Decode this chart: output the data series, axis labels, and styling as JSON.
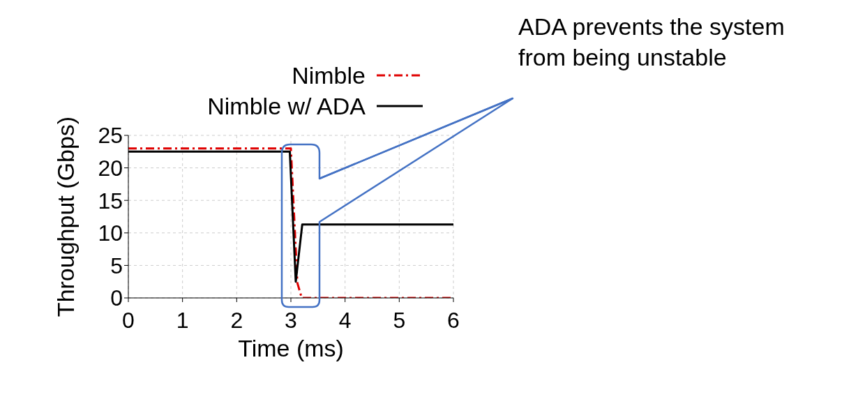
{
  "chart_data": {
    "type": "line",
    "xlabel": "Time (ms)",
    "ylabel": "Throughput (Gbps)",
    "xlim": [
      0,
      6
    ],
    "xticks": [
      0,
      1,
      2,
      3,
      4,
      5,
      6
    ],
    "ylim": [
      0,
      25
    ],
    "yticks": [
      0,
      5,
      10,
      15,
      20,
      25
    ],
    "grid": true,
    "legend": "top right",
    "marker": "none",
    "series": [
      {
        "name": "Nimble",
        "color": "#e00000",
        "line_style": "dashdot",
        "x": [
          0,
          3.0,
          3.12,
          3.2,
          6
        ],
        "values": [
          23,
          23,
          2.3,
          0,
          0
        ]
      },
      {
        "name": "Nimble w/ ADA",
        "color": "#000000",
        "line_style": "solid",
        "x": [
          0,
          2.98,
          3.09,
          3.21,
          6
        ],
        "values": [
          22.5,
          22.5,
          2.5,
          11.3,
          11.3
        ]
      }
    ],
    "annotations": [
      "ADA prevents the system from being unstable"
    ]
  }
}
